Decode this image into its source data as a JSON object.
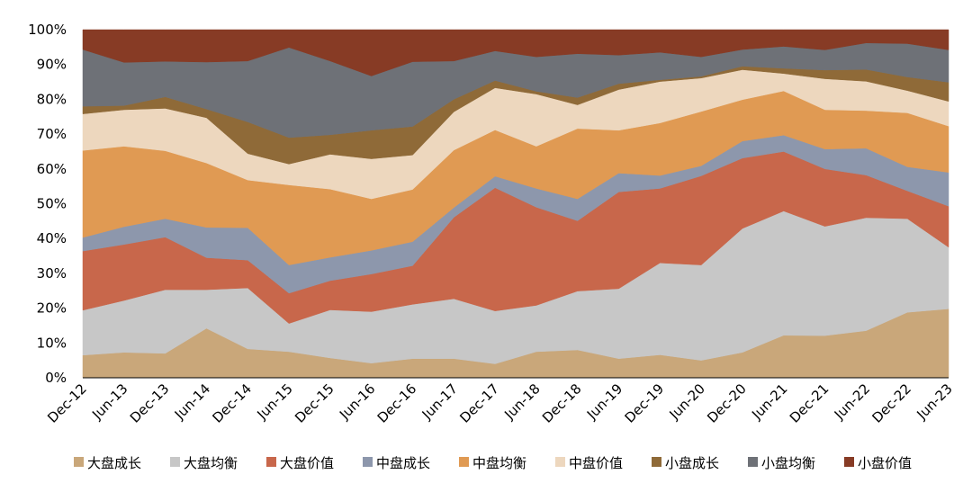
{
  "chart_data": {
    "type": "area",
    "stacked": "percent",
    "title": "",
    "xlabel": "",
    "ylabel": "",
    "ylim": [
      0,
      100
    ],
    "y_ticks": [
      "0%",
      "10%",
      "20%",
      "30%",
      "40%",
      "50%",
      "60%",
      "70%",
      "80%",
      "90%",
      "100%"
    ],
    "grid": false,
    "legend_position": "bottom",
    "categories": [
      "Dec-12",
      "Jun-13",
      "Dec-13",
      "Jun-14",
      "Dec-14",
      "Jun-15",
      "Dec-15",
      "Jun-16",
      "Dec-16",
      "Jun-17",
      "Dec-17",
      "Jun-18",
      "Dec-18",
      "Jun-19",
      "Dec-19",
      "Jun-20",
      "Dec-20",
      "Jun-21",
      "Dec-21",
      "Jun-22",
      "Dec-22",
      "Jun-23"
    ],
    "series": [
      {
        "name": "大盘成长",
        "color": "#C9A77A",
        "values": [
          6.5,
          7.3,
          7.0,
          14.2,
          8.3,
          7.5,
          5.7,
          4.2,
          5.5,
          5.5,
          4.0,
          7.5,
          8.0,
          5.5,
          6.6,
          5.0,
          7.3,
          12.2,
          12.1,
          13.5,
          18.8,
          19.8
        ]
      },
      {
        "name": "大盘均衡",
        "color": "#C7C7C7",
        "values": [
          12.9,
          14.9,
          18.3,
          11.1,
          17.5,
          8.1,
          13.8,
          14.8,
          15.6,
          17.2,
          15.2,
          13.3,
          16.9,
          20.1,
          26.4,
          27.4,
          35.6,
          35.7,
          31.4,
          32.4,
          26.9,
          17.7
        ]
      },
      {
        "name": "大盘价值",
        "color": "#C8674B",
        "values": [
          17.0,
          16.1,
          15.1,
          9.2,
          8.0,
          8.7,
          8.4,
          10.8,
          11.1,
          23.4,
          35.4,
          28.2,
          20.2,
          27.8,
          21.4,
          25.6,
          20.2,
          17.1,
          16.5,
          12.2,
          8.0,
          11.8
        ]
      },
      {
        "name": "中盘成长",
        "color": "#8D97AC",
        "values": [
          3.9,
          5.1,
          5.3,
          8.7,
          9.3,
          8.1,
          6.7,
          6.8,
          6.9,
          2.8,
          3.3,
          5.4,
          6.3,
          5.4,
          3.7,
          2.9,
          4.9,
          4.7,
          5.7,
          7.7,
          6.9,
          9.7
        ]
      },
      {
        "name": "中盘均衡",
        "color": "#E09A53",
        "values": [
          25.0,
          23.1,
          19.5,
          18.5,
          13.7,
          23.0,
          19.6,
          14.8,
          15.0,
          16.5,
          13.3,
          12.1,
          20.2,
          12.3,
          15.1,
          15.6,
          11.9,
          12.7,
          11.3,
          10.8,
          15.5,
          13.3
        ]
      },
      {
        "name": "中盘价值",
        "color": "#EDD7BE",
        "values": [
          10.5,
          10.5,
          12.2,
          13.0,
          7.6,
          6.0,
          10.0,
          11.5,
          9.9,
          11.0,
          12.1,
          15.0,
          6.8,
          11.7,
          11.9,
          9.6,
          8.6,
          5.0,
          8.9,
          8.4,
          6.4,
          7.1
        ]
      },
      {
        "name": "小盘成长",
        "color": "#8F6A38",
        "values": [
          2.2,
          1.2,
          3.3,
          2.5,
          9.1,
          7.6,
          5.6,
          8.2,
          8.2,
          3.6,
          2.1,
          0.8,
          2.1,
          1.7,
          0.5,
          0.5,
          1.0,
          1.5,
          2.5,
          3.4,
          3.9,
          5.5
        ]
      },
      {
        "name": "小盘均衡",
        "color": "#6E7177",
        "values": [
          16.3,
          12.4,
          10.2,
          13.5,
          17.5,
          25.9,
          21.2,
          15.6,
          18.6,
          11.0,
          8.5,
          9.9,
          12.6,
          8.2,
          7.9,
          5.6,
          4.8,
          6.3,
          5.8,
          7.6,
          9.6,
          9.3
        ]
      },
      {
        "name": "小盘价值",
        "color": "#873B25",
        "values": [
          5.7,
          9.4,
          9.1,
          9.3,
          9.0,
          5.1,
          9.0,
          13.3,
          9.2,
          9.0,
          6.1,
          7.8,
          6.9,
          7.3,
          6.5,
          7.8,
          5.7,
          4.8,
          5.8,
          3.8,
          4.0,
          5.8
        ]
      }
    ]
  }
}
